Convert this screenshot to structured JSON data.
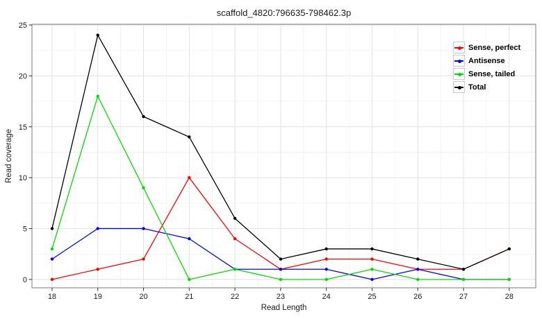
{
  "chart_data": {
    "type": "line",
    "title": "scaffold_4820:796635-798462.3p",
    "xlabel": "Read Length",
    "ylabel": "Read coverage",
    "x": [
      18,
      19,
      20,
      21,
      22,
      23,
      24,
      25,
      26,
      27,
      28
    ],
    "series": [
      {
        "name": "Sense, perfect",
        "color": "#FF0000",
        "values": [
          0,
          1,
          2,
          10,
          4,
          1,
          2,
          2,
          1,
          1,
          3
        ]
      },
      {
        "name": "Antisense",
        "color": "#0000FF",
        "values": [
          2,
          5,
          5,
          4,
          1,
          1,
          1,
          0,
          1,
          0,
          0
        ]
      },
      {
        "name": "Sense, tailed",
        "color": "#00DC00",
        "values": [
          3,
          18,
          9,
          0,
          1,
          0,
          0,
          1,
          0,
          0,
          0
        ]
      },
      {
        "name": "Total",
        "color": "#000000",
        "values": [
          5,
          24,
          16,
          14,
          6,
          2,
          3,
          3,
          2,
          1,
          3
        ]
      }
    ],
    "xticks": [
      18,
      19,
      20,
      21,
      22,
      23,
      24,
      25,
      26,
      27,
      28
    ],
    "yticks": [
      0,
      5,
      10,
      15,
      20,
      25
    ],
    "xlim": [
      17.56,
      28.58
    ],
    "ylim": [
      -0.82,
      25.07
    ],
    "grid": "major+minor",
    "legend_position": "top-right",
    "legend_labels_bold": true
  },
  "style": {
    "background": "#FFFFFF",
    "panel_border_color": "#848484",
    "grid_major_color": "#E2E2E2",
    "grid_minor_color": "#F2F2F2",
    "tick_color": "#2F2F2F",
    "text_color": "#1A1A1A"
  }
}
